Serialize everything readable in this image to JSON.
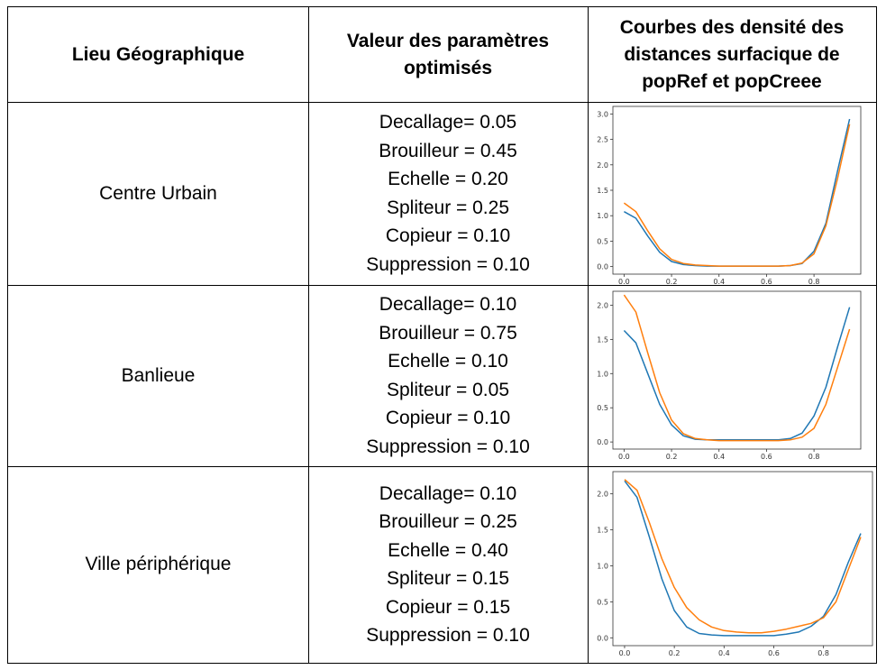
{
  "headers": {
    "location": "Lieu Géographique",
    "params_line1": "Valeur des paramètres",
    "params_line2": "optimisés",
    "curves_line1": "Courbes des densité des",
    "curves_line2": "distances surfacique de",
    "curves_line3": "popRef et popCreee"
  },
  "rows": [
    {
      "location": "Centre Urbain",
      "params": [
        "Decallage= 0.05",
        "Brouilleur = 0.45",
        "Echelle = 0.20",
        "Spliteur = 0.25",
        "Copieur = 0.10",
        "Suppression = 0.10"
      ]
    },
    {
      "location": "Banlieue",
      "params": [
        "Decallage= 0.10",
        "Brouilleur = 0.75",
        "Echelle = 0.10",
        "Spliteur = 0.05",
        "Copieur = 0.10",
        "Suppression = 0.10"
      ]
    },
    {
      "location": "Ville périphérique",
      "params": [
        "Decallage= 0.10",
        "Brouilleur = 0.25",
        "Echelle = 0.40",
        "Spliteur = 0.15",
        "Copieur = 0.15",
        "Suppression = 0.10"
      ]
    }
  ],
  "colors": {
    "series1": "#1f77b4",
    "series2": "#ff7f0e"
  },
  "chart_data": [
    {
      "type": "line",
      "xlim": [
        0.0,
        0.95
      ],
      "ylim": [
        0.0,
        3.0
      ],
      "xticks": [
        "0.0",
        "0.2",
        "0.4",
        "0.6",
        "0.8"
      ],
      "yticks": [
        "0.0",
        "0.5",
        "1.0",
        "1.5",
        "2.0",
        "2.5",
        "3.0"
      ],
      "x": [
        0.0,
        0.05,
        0.1,
        0.15,
        0.2,
        0.25,
        0.3,
        0.35,
        0.4,
        0.45,
        0.5,
        0.55,
        0.6,
        0.65,
        0.7,
        0.75,
        0.8,
        0.85,
        0.9,
        0.95
      ],
      "series": [
        {
          "values": [
            1.08,
            0.95,
            0.6,
            0.28,
            0.1,
            0.04,
            0.02,
            0.01,
            0.01,
            0.01,
            0.01,
            0.01,
            0.01,
            0.01,
            0.02,
            0.06,
            0.3,
            0.85,
            1.9,
            2.9
          ]
        },
        {
          "values": [
            1.25,
            1.08,
            0.7,
            0.35,
            0.14,
            0.06,
            0.03,
            0.02,
            0.01,
            0.01,
            0.01,
            0.01,
            0.01,
            0.01,
            0.02,
            0.07,
            0.25,
            0.8,
            1.75,
            2.8
          ]
        }
      ]
    },
    {
      "type": "line",
      "xlim": [
        0.0,
        0.95
      ],
      "ylim": [
        0.0,
        2.1
      ],
      "xticks": [
        "0.0",
        "0.2",
        "0.4",
        "0.6",
        "0.8"
      ],
      "yticks": [
        "0.0",
        "0.5",
        "1.0",
        "1.5",
        "2.0"
      ],
      "x": [
        0.0,
        0.05,
        0.1,
        0.15,
        0.2,
        0.25,
        0.3,
        0.35,
        0.4,
        0.45,
        0.5,
        0.55,
        0.6,
        0.65,
        0.7,
        0.75,
        0.8,
        0.85,
        0.9,
        0.95
      ],
      "series": [
        {
          "values": [
            1.63,
            1.45,
            1.0,
            0.55,
            0.25,
            0.09,
            0.04,
            0.03,
            0.03,
            0.03,
            0.03,
            0.03,
            0.03,
            0.03,
            0.05,
            0.13,
            0.38,
            0.8,
            1.4,
            1.97
          ]
        },
        {
          "values": [
            2.15,
            1.9,
            1.3,
            0.72,
            0.32,
            0.12,
            0.05,
            0.03,
            0.02,
            0.02,
            0.02,
            0.02,
            0.02,
            0.02,
            0.03,
            0.07,
            0.2,
            0.55,
            1.1,
            1.65
          ]
        }
      ]
    },
    {
      "type": "line",
      "xlim": [
        0.0,
        0.95
      ],
      "ylim": [
        0.0,
        2.2
      ],
      "xticks": [
        "0.0",
        "0.2",
        "0.4",
        "0.6",
        "0.8"
      ],
      "yticks": [
        "0.0",
        "0.5",
        "1.0",
        "1.5",
        "2.0"
      ],
      "x": [
        0.0,
        0.05,
        0.1,
        0.15,
        0.2,
        0.25,
        0.3,
        0.35,
        0.4,
        0.45,
        0.5,
        0.55,
        0.6,
        0.65,
        0.7,
        0.75,
        0.8,
        0.85,
        0.9,
        0.95
      ],
      "series": [
        {
          "values": [
            2.18,
            1.95,
            1.4,
            0.82,
            0.38,
            0.15,
            0.06,
            0.04,
            0.03,
            0.03,
            0.03,
            0.03,
            0.03,
            0.05,
            0.08,
            0.16,
            0.3,
            0.6,
            1.05,
            1.45
          ]
        },
        {
          "values": [
            2.2,
            2.05,
            1.6,
            1.1,
            0.7,
            0.42,
            0.25,
            0.15,
            0.1,
            0.08,
            0.07,
            0.07,
            0.09,
            0.12,
            0.16,
            0.2,
            0.28,
            0.5,
            0.95,
            1.4
          ]
        }
      ]
    }
  ]
}
